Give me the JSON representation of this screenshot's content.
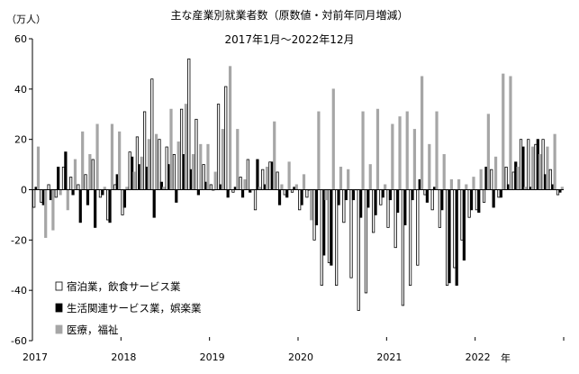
{
  "chart_data": {
    "type": "bar",
    "title": "主な産業別就業者数（原数値・対前年同月増減）",
    "subtitle": "2017年1月～2022年12月",
    "ylabel": "（万人）",
    "xlabel": "年",
    "ylim": [
      -60,
      60
    ],
    "yticks": [
      60,
      40,
      20,
      0,
      -20,
      -40,
      -60
    ],
    "year_labels": [
      "2017",
      "2018",
      "2019",
      "2020",
      "2021",
      "2022"
    ],
    "months_per_year": 12,
    "legend_position": "bottom-left",
    "series": [
      {
        "name": "宿泊業，飲食サービス業",
        "fill": "#ffffff",
        "stroke": "#000000",
        "values": [
          -7,
          -5,
          2,
          -3,
          9,
          5,
          2,
          6,
          12,
          -3,
          -12,
          2,
          -10,
          15,
          21,
          31,
          44,
          20,
          17,
          14,
          32,
          52,
          28,
          10,
          2,
          34,
          41,
          -1,
          5,
          12,
          -8,
          8,
          11,
          7,
          -2,
          -1,
          -8,
          -3,
          -20,
          -38,
          -29,
          -38,
          -13,
          -35,
          -48,
          -41,
          -17,
          -6,
          -15,
          -23,
          -46,
          -38,
          -30,
          -2,
          -8,
          -15,
          -38,
          -31,
          -20,
          -11,
          -8,
          -5,
          8,
          -3,
          9,
          7,
          20,
          20,
          18,
          20,
          8,
          -2
        ]
      },
      {
        "name": "生活関連サービス業，娯楽業",
        "fill": "#000000",
        "stroke": "#000000",
        "values": [
          1,
          -6,
          -4,
          9,
          15,
          -2,
          -13,
          -6,
          -15,
          -2,
          -13,
          6,
          -7,
          13,
          10,
          9,
          -11,
          3,
          10,
          -5,
          14,
          8,
          -2,
          3,
          0,
          2,
          -3,
          1,
          -3,
          -1,
          12,
          2,
          11,
          -6,
          -3,
          1,
          -6,
          0,
          -14,
          -26,
          -30,
          -6,
          -4,
          -4,
          -11,
          -7,
          -10,
          -3,
          -4,
          -9,
          -14,
          -4,
          4,
          -5,
          1,
          -8,
          -37,
          -38,
          -28,
          -8,
          -9,
          9,
          -7,
          -3,
          2,
          11,
          17,
          1,
          20,
          6,
          2,
          -1
        ]
      },
      {
        "name": "医療，福祉",
        "fill": "#a6a6a6",
        "stroke": "#a6a6a6",
        "values": [
          17,
          -19,
          -16,
          -2,
          -8,
          12,
          23,
          14,
          26,
          1,
          26,
          23,
          1,
          7,
          13,
          20,
          22,
          1,
          32,
          19,
          34,
          14,
          18,
          18,
          7,
          24,
          49,
          24,
          4,
          0,
          1,
          9,
          27,
          2,
          11,
          2,
          6,
          -12,
          31,
          -4,
          40,
          9,
          8,
          0,
          31,
          10,
          32,
          2,
          26,
          29,
          31,
          24,
          45,
          18,
          31,
          14,
          4,
          4,
          2,
          5,
          8,
          30,
          13,
          46,
          45,
          9,
          1,
          17,
          14,
          17,
          22,
          1
        ]
      }
    ]
  }
}
